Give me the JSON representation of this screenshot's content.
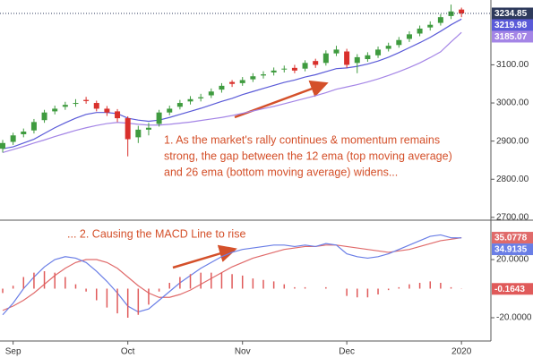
{
  "chart_data": [
    {
      "type": "candlestick",
      "categories": [
        null,
        "Sep",
        null,
        null,
        null,
        null,
        null,
        null,
        null,
        null,
        null,
        null,
        "Oct",
        null,
        null,
        null,
        null,
        null,
        null,
        null,
        null,
        null,
        null,
        "Nov",
        null,
        null,
        null,
        null,
        null,
        null,
        null,
        null,
        null,
        "Dec",
        null,
        null,
        null,
        null,
        null,
        null,
        null,
        null,
        null,
        null,
        "2020"
      ],
      "open": [
        2880,
        2898,
        2918,
        2928,
        2955,
        2978,
        2990,
        2998,
        3008,
        3000,
        2985,
        2978,
        2960,
        2910,
        2930,
        2945,
        2975,
        2990,
        3004,
        3012,
        3020,
        3035,
        3055,
        3052,
        3062,
        3072,
        3080,
        3088,
        3092,
        3090,
        3110,
        3105,
        3130,
        3135,
        3105,
        3115,
        3125,
        3142,
        3152,
        3168,
        3182,
        3198,
        3210,
        3228,
        3245
      ],
      "high": [
        2903,
        2922,
        2933,
        2958,
        2982,
        2993,
        3003,
        3010,
        3016,
        3006,
        2992,
        2984,
        2965,
        2940,
        2948,
        2982,
        2993,
        3008,
        3018,
        3024,
        3038,
        3052,
        3060,
        3068,
        3078,
        3083,
        3093,
        3098,
        3100,
        3112,
        3116,
        3138,
        3150,
        3142,
        3128,
        3133,
        3148,
        3158,
        3173,
        3188,
        3203,
        3214,
        3233,
        3258,
        3250
      ],
      "low": [
        2870,
        2890,
        2910,
        2920,
        2948,
        2970,
        2982,
        2990,
        2998,
        2978,
        2966,
        2950,
        2860,
        2895,
        2915,
        2938,
        2968,
        2983,
        2996,
        3004,
        3013,
        3027,
        3042,
        3045,
        3055,
        3064,
        3072,
        3080,
        3078,
        3083,
        3092,
        3098,
        3123,
        3092,
        3078,
        3108,
        3118,
        3135,
        3145,
        3160,
        3175,
        3190,
        3203,
        3220,
        3225
      ],
      "close": [
        2895,
        2915,
        2925,
        2950,
        2975,
        2985,
        2995,
        3000,
        3005,
        2985,
        2975,
        2960,
        2905,
        2930,
        2935,
        2975,
        2985,
        3000,
        3010,
        3015,
        3030,
        3045,
        3050,
        3060,
        3070,
        3075,
        3085,
        3090,
        3085,
        3105,
        3100,
        3130,
        3140,
        3100,
        3120,
        3125,
        3140,
        3150,
        3165,
        3180,
        3195,
        3205,
        3225,
        3240,
        3234.85
      ],
      "up_color": "#3f9b3f",
      "down_color": "#d9302c",
      "label_color": "#2e3a5c",
      "series": [
        {
          "color": "#5a5ad8",
          "values": [
            2880,
            2885,
            2895,
            2905,
            2920,
            2935,
            2948,
            2960,
            2970,
            2975,
            2975,
            2972,
            2960,
            2955,
            2952,
            2955,
            2962,
            2970,
            2978,
            2986,
            2995,
            3004,
            3012,
            3022,
            3030,
            3038,
            3046,
            3054,
            3060,
            3068,
            3074,
            3082,
            3090,
            3092,
            3096,
            3102,
            3110,
            3120,
            3132,
            3145,
            3158,
            3172,
            3188,
            3205,
            3219.98
          ]
        },
        {
          "color": "#a485e6",
          "values": [
            2870,
            2878,
            2886,
            2895,
            2903,
            2912,
            2920,
            2928,
            2935,
            2941,
            2946,
            2949,
            2947,
            2944,
            2942,
            2942,
            2944,
            2947,
            2950,
            2954,
            2958,
            2962,
            2967,
            2973,
            2979,
            2985,
            2991,
            2998,
            3005,
            3012,
            3019,
            3027,
            3036,
            3042,
            3048,
            3055,
            3063,
            3072,
            3082,
            3093,
            3105,
            3119,
            3134,
            3160,
            3185.07
          ]
        }
      ],
      "ylim": [
        2695,
        3270
      ],
      "yticks": [
        {
          "value": 2700,
          "label": "2700.00"
        },
        {
          "value": 2800,
          "label": "2800.00"
        },
        {
          "value": 2900,
          "label": "2900.00"
        },
        {
          "value": 3000,
          "label": "3000.00"
        },
        {
          "value": 3100,
          "label": "3100.00"
        }
      ],
      "annotation": [
        "1. As the market's rally continues & momentum remains",
        "strong, the gap between the 12 ema (top moving average)",
        "and 26 ema (bottom moving average) widens..."
      ],
      "annotation_color": "#d4502a"
    },
    {
      "type": "line",
      "series": [
        {
          "color": "#e06a6a",
          "values": [
            -15,
            -12,
            -8,
            -3,
            3,
            9,
            14,
            18,
            20,
            20,
            18,
            14,
            8,
            2,
            -3,
            -6,
            -6,
            -4,
            -1,
            3,
            7,
            11,
            15,
            18,
            21,
            23,
            25,
            27,
            28,
            29,
            29,
            30,
            30,
            29,
            28,
            27,
            26,
            25,
            26,
            27,
            29,
            31,
            33,
            34,
            35.0778
          ]
        },
        {
          "color": "#6a7ee6",
          "values": [
            -18,
            -10,
            0,
            8,
            15,
            20,
            22,
            21,
            18,
            12,
            5,
            -3,
            -12,
            -16,
            -14,
            -8,
            -2,
            4,
            9,
            14,
            18,
            22,
            25,
            27,
            28,
            29,
            30,
            30,
            29,
            30,
            29,
            31,
            30,
            24,
            22,
            21,
            22,
            24,
            27,
            30,
            33,
            36,
            37,
            35,
            34.9135
          ]
        },
        {
          "type": "bar",
          "color": "#e05a5a",
          "values": [
            -3,
            2,
            8,
            11,
            12,
            11,
            8,
            3,
            -2,
            -8,
            -13,
            -17,
            -20,
            -18,
            -11,
            -2,
            4,
            8,
            10,
            11,
            11,
            11,
            10,
            9,
            7,
            6,
            5,
            3,
            1,
            1,
            0,
            1,
            0,
            -5,
            -6,
            -6,
            -4,
            -1,
            1,
            3,
            4,
            5,
            4,
            1,
            -0.1643
          ]
        }
      ],
      "ylim": [
        -35.4,
        46.5
      ],
      "yticks": [
        {
          "value": -20,
          "label": "-20.0000"
        },
        {
          "value": 20,
          "label": "20.0000"
        }
      ],
      "annotation": "... 2. Causing the MACD Line to rise",
      "annotation_color": "#d4502a"
    }
  ]
}
